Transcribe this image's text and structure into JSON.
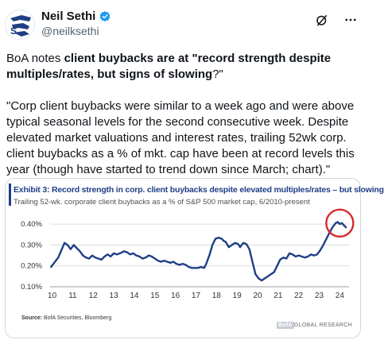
{
  "author": {
    "display_name": "Neil Sethi",
    "handle": "@neilksethi",
    "verified_icon": "verified-badge-icon"
  },
  "actions": {
    "grok_icon": "slash-circle-icon",
    "more_icon": "more-dots-icon"
  },
  "tweet": {
    "intro_pre": "BoA notes ",
    "intro_bold": "client buybacks are at \"record strength despite multiples/rates, but signs of slowing",
    "intro_post": "?\"",
    "quote": "\"Corp client buybacks were similar to a week ago and were above typical seasonal levels for the second consecutive week. Despite elevated market valuations and interest rates, trailing 52wk corp. client buybacks as a % of mkt. cap have been at record levels this year (though have started to trend down since March; chart).\""
  },
  "chart_image": {
    "title": "Exhibit 3: Record strength in corp. client buybacks despite elevated multiples/rates – but slowing",
    "subtitle": "Trailing 52-wk. corporate client buybacks as a % of S&P 500 market cap, 6/2010-present",
    "source_label": "Source:",
    "source_text": "BofA Securities, Bloomberg",
    "brand_bofa": "BofA",
    "brand_rest": "GLOBAL RESEARCH",
    "accent_color": "#1f3f86",
    "highlight_color": "#d62a2a"
  },
  "chart_data": {
    "type": "line",
    "title": "Exhibit 3: Record strength in corp. client buybacks despite elevated multiples/rates – but slowing",
    "subtitle": "Trailing 52-wk. corporate client buybacks as a % of S&P 500 market cap, 6/2010-present",
    "xlabel": "",
    "ylabel": "",
    "x_ticks": [
      "10",
      "11",
      "12",
      "13",
      "14",
      "15",
      "16",
      "17",
      "18",
      "19",
      "20",
      "21",
      "22",
      "23",
      "24"
    ],
    "y_ticks": [
      "0.10%",
      "0.20%",
      "0.30%",
      "0.40%"
    ],
    "ylim": [
      0.1,
      0.45
    ],
    "xlim": [
      2010.4,
      2024.95
    ],
    "grid": "horizontal",
    "series": [
      {
        "values": [
          [
            2010.45,
            0.195
          ],
          [
            2010.6,
            0.215
          ],
          [
            2010.8,
            0.24
          ],
          [
            2010.95,
            0.275
          ],
          [
            2011.1,
            0.31
          ],
          [
            2011.25,
            0.3
          ],
          [
            2011.4,
            0.28
          ],
          [
            2011.55,
            0.3
          ],
          [
            2011.7,
            0.285
          ],
          [
            2011.85,
            0.27
          ],
          [
            2012.0,
            0.25
          ],
          [
            2012.15,
            0.24
          ],
          [
            2012.3,
            0.235
          ],
          [
            2012.45,
            0.25
          ],
          [
            2012.6,
            0.24
          ],
          [
            2012.75,
            0.235
          ],
          [
            2012.9,
            0.23
          ],
          [
            2013.05,
            0.245
          ],
          [
            2013.2,
            0.255
          ],
          [
            2013.35,
            0.245
          ],
          [
            2013.5,
            0.26
          ],
          [
            2013.65,
            0.255
          ],
          [
            2013.8,
            0.26
          ],
          [
            2014.0,
            0.27
          ],
          [
            2014.15,
            0.265
          ],
          [
            2014.3,
            0.255
          ],
          [
            2014.45,
            0.26
          ],
          [
            2014.6,
            0.25
          ],
          [
            2014.75,
            0.245
          ],
          [
            2014.9,
            0.235
          ],
          [
            2015.05,
            0.24
          ],
          [
            2015.2,
            0.25
          ],
          [
            2015.35,
            0.245
          ],
          [
            2015.5,
            0.235
          ],
          [
            2015.65,
            0.225
          ],
          [
            2015.8,
            0.22
          ],
          [
            2015.95,
            0.225
          ],
          [
            2016.1,
            0.22
          ],
          [
            2016.25,
            0.215
          ],
          [
            2016.4,
            0.22
          ],
          [
            2016.55,
            0.21
          ],
          [
            2016.7,
            0.205
          ],
          [
            2016.85,
            0.21
          ],
          [
            2017.0,
            0.205
          ],
          [
            2017.15,
            0.195
          ],
          [
            2017.3,
            0.19
          ],
          [
            2017.45,
            0.19
          ],
          [
            2017.6,
            0.19
          ],
          [
            2017.75,
            0.195
          ],
          [
            2017.9,
            0.19
          ],
          [
            2018.0,
            0.21
          ],
          [
            2018.15,
            0.25
          ],
          [
            2018.3,
            0.3
          ],
          [
            2018.45,
            0.33
          ],
          [
            2018.6,
            0.335
          ],
          [
            2018.75,
            0.33
          ],
          [
            2018.85,
            0.32
          ],
          [
            2018.95,
            0.315
          ],
          [
            2019.1,
            0.29
          ],
          [
            2019.25,
            0.3
          ],
          [
            2019.4,
            0.31
          ],
          [
            2019.55,
            0.305
          ],
          [
            2019.65,
            0.29
          ],
          [
            2019.8,
            0.31
          ],
          [
            2019.95,
            0.305
          ],
          [
            2020.1,
            0.28
          ],
          [
            2020.25,
            0.22
          ],
          [
            2020.4,
            0.16
          ],
          [
            2020.55,
            0.14
          ],
          [
            2020.7,
            0.13
          ],
          [
            2020.85,
            0.14
          ],
          [
            2021.0,
            0.15
          ],
          [
            2021.15,
            0.16
          ],
          [
            2021.3,
            0.17
          ],
          [
            2021.45,
            0.2
          ],
          [
            2021.6,
            0.23
          ],
          [
            2021.75,
            0.24
          ],
          [
            2021.9,
            0.235
          ],
          [
            2022.05,
            0.26
          ],
          [
            2022.2,
            0.255
          ],
          [
            2022.35,
            0.245
          ],
          [
            2022.5,
            0.25
          ],
          [
            2022.65,
            0.245
          ],
          [
            2022.8,
            0.24
          ],
          [
            2022.95,
            0.245
          ],
          [
            2023.1,
            0.255
          ],
          [
            2023.25,
            0.25
          ],
          [
            2023.4,
            0.255
          ],
          [
            2023.55,
            0.275
          ],
          [
            2023.7,
            0.3
          ],
          [
            2023.85,
            0.33
          ],
          [
            2024.0,
            0.36
          ],
          [
            2024.15,
            0.385
          ],
          [
            2024.3,
            0.405
          ],
          [
            2024.4,
            0.41
          ],
          [
            2024.5,
            0.4
          ],
          [
            2024.6,
            0.405
          ],
          [
            2024.7,
            0.395
          ],
          [
            2024.8,
            0.385
          ]
        ]
      }
    ],
    "annotations": [
      {
        "type": "circle",
        "center": [
          2024.5,
          0.405
        ],
        "color": "#d62a2a"
      }
    ]
  }
}
